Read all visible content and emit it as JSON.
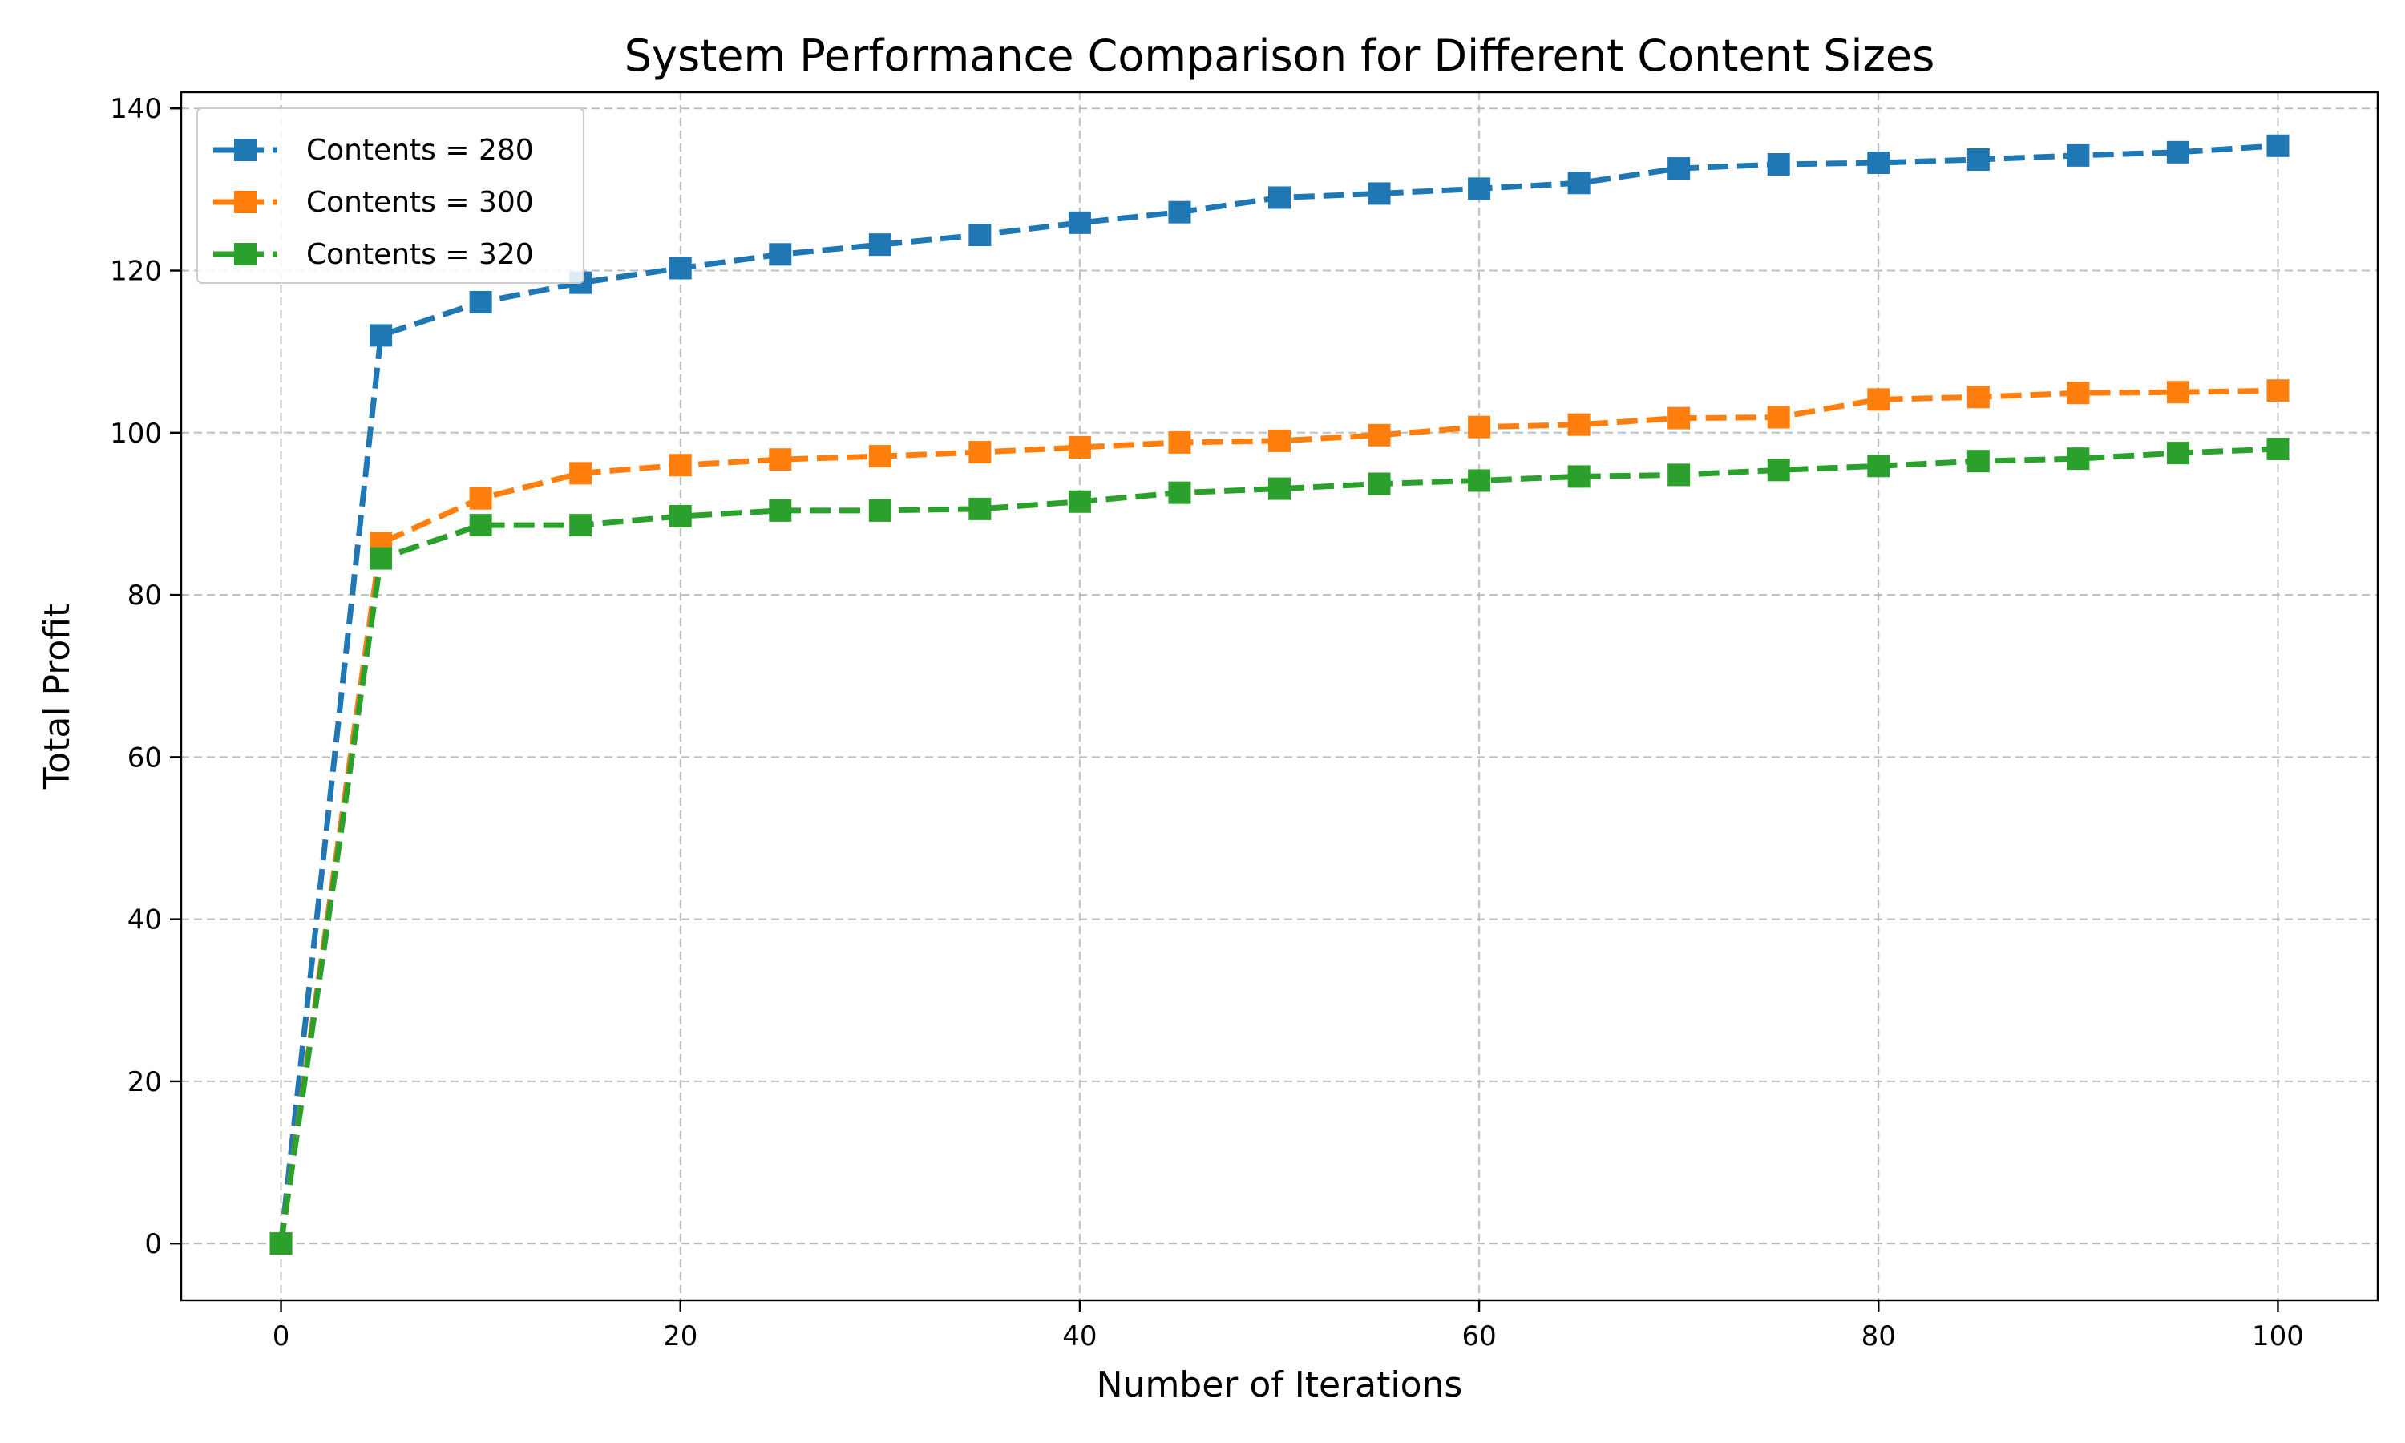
{
  "chart_data": {
    "type": "line",
    "title": "System Performance Comparison for Different Content Sizes",
    "xlabel": "Number of Iterations",
    "ylabel": "Total Profit",
    "xlim": [
      -5,
      105
    ],
    "ylim": [
      -7,
      142
    ],
    "xticks": [
      0,
      20,
      40,
      60,
      80,
      100
    ],
    "yticks": [
      0,
      20,
      40,
      60,
      80,
      100,
      120,
      140
    ],
    "grid": true,
    "legend_position": "top-left",
    "x": [
      0,
      5,
      10,
      15,
      20,
      25,
      30,
      35,
      40,
      45,
      50,
      55,
      60,
      65,
      70,
      75,
      80,
      85,
      90,
      95,
      100
    ],
    "series": [
      {
        "name": "Contents = 280",
        "color": "#1f77b4",
        "values": [
          0,
          112.0,
          116.1,
          118.5,
          120.3,
          122.0,
          123.2,
          124.4,
          125.9,
          127.2,
          129.0,
          129.5,
          130.1,
          130.8,
          132.6,
          133.1,
          133.3,
          133.7,
          134.2,
          134.6,
          135.4
        ]
      },
      {
        "name": "Contents = 300",
        "color": "#ff7f0e",
        "values": [
          0,
          86.4,
          91.9,
          95.0,
          96.0,
          96.7,
          97.1,
          97.6,
          98.2,
          98.8,
          99.0,
          99.7,
          100.7,
          101.0,
          101.8,
          101.9,
          104.1,
          104.4,
          104.9,
          105.0,
          105.2
        ]
      },
      {
        "name": "Contents = 320",
        "color": "#2ca02c",
        "values": [
          0,
          84.5,
          88.6,
          88.6,
          89.7,
          90.4,
          90.4,
          90.6,
          91.5,
          92.6,
          93.1,
          93.7,
          94.1,
          94.6,
          94.8,
          95.4,
          95.9,
          96.5,
          96.8,
          97.5,
          98.0
        ]
      }
    ]
  }
}
